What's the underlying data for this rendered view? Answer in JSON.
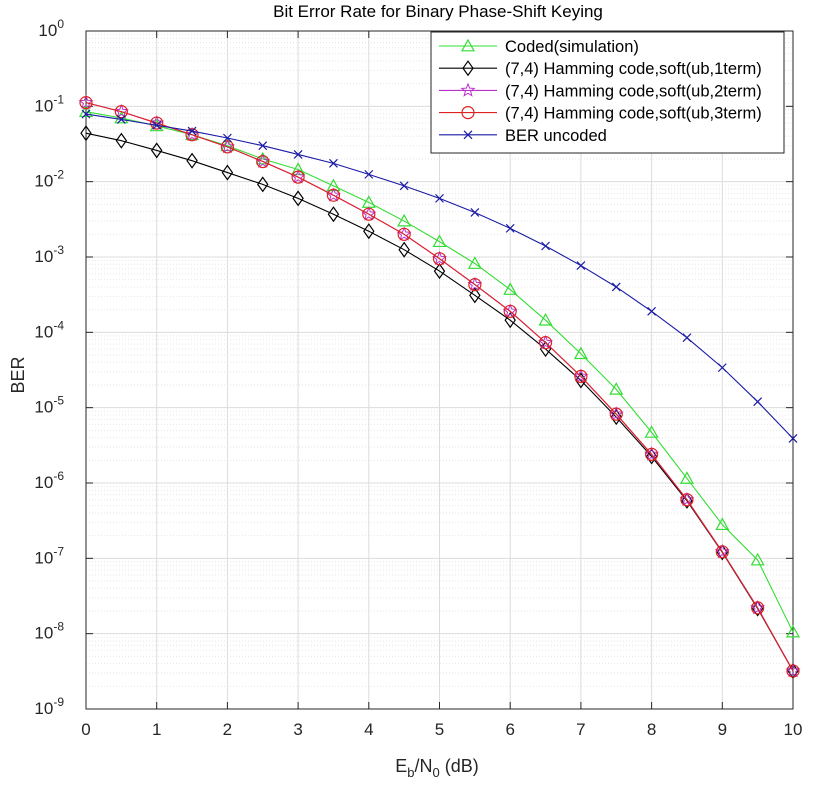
{
  "chart_data": {
    "type": "line",
    "title": "Bit Error Rate for Binary Phase-Shift Keying",
    "xlabel": {
      "E": "E",
      "sub1": "b",
      "slash": "/N",
      "sub2": "0",
      "unit": " (dB)"
    },
    "ylabel": "BER",
    "xlim": [
      0,
      10
    ],
    "ylim": [
      1e-09,
      1
    ],
    "yscale": "log",
    "grid": true,
    "legend_position": "top-right",
    "x_ticks": [
      "0",
      "1",
      "2",
      "3",
      "4",
      "5",
      "6",
      "7",
      "8",
      "9",
      "10"
    ],
    "y_ticks": [
      {
        "base": "10",
        "exp": "0"
      },
      {
        "base": "10",
        "exp": "-1"
      },
      {
        "base": "10",
        "exp": "-2"
      },
      {
        "base": "10",
        "exp": "-3"
      },
      {
        "base": "10",
        "exp": "-4"
      },
      {
        "base": "10",
        "exp": "-5"
      },
      {
        "base": "10",
        "exp": "-6"
      },
      {
        "base": "10",
        "exp": "-7"
      },
      {
        "base": "10",
        "exp": "-8"
      },
      {
        "base": "10",
        "exp": "-9"
      }
    ],
    "x": [
      0,
      0.5,
      1,
      1.5,
      2,
      2.5,
      3,
      3.5,
      4,
      4.5,
      5,
      5.5,
      6,
      6.5,
      7,
      7.5,
      8,
      8.5,
      9,
      9.5,
      10
    ],
    "series": [
      {
        "name": "Coded(simulation)",
        "color": "#33dd33",
        "marker": "triangle",
        "values": [
          0.085,
          0.07,
          0.055,
          0.042,
          0.03,
          0.02,
          0.0145,
          0.0088,
          0.0053,
          0.003,
          0.0016,
          0.00082,
          0.00037,
          0.000145,
          5.2e-05,
          1.75e-05,
          4.7e-06,
          1.15e-06,
          2.8e-07,
          9.5e-08,
          1.05e-08
        ]
      },
      {
        "name": "(7,4) Hamming code,soft(ub,1term)",
        "color": "#000000",
        "marker": "diamond",
        "values": [
          0.044,
          0.035,
          0.026,
          0.019,
          0.0132,
          0.0092,
          0.006,
          0.0037,
          0.0022,
          0.00125,
          0.00065,
          0.00031,
          0.000145,
          6e-05,
          2.3e-05,
          7.5e-06,
          2.25e-06,
          5.8e-07,
          1.2e-07,
          2.15e-08,
          3.2e-09
        ]
      },
      {
        "name": "(7,4) Hamming code,soft(ub,2term)",
        "color": "#bb33cc",
        "marker": "star",
        "values": [
          0.112,
          0.085,
          0.06,
          0.042,
          0.029,
          0.0185,
          0.0115,
          0.0066,
          0.0037,
          0.002,
          0.00095,
          0.00043,
          0.00019,
          7.3e-05,
          2.6e-05,
          8.2e-06,
          2.4e-06,
          6e-07,
          1.22e-07,
          2.2e-08,
          3.2e-09
        ]
      },
      {
        "name": "(7,4) Hamming code,soft(ub,3term)",
        "color": "#dd2222",
        "marker": "circle",
        "values": [
          0.112,
          0.085,
          0.06,
          0.042,
          0.029,
          0.0185,
          0.0115,
          0.0066,
          0.0037,
          0.002,
          0.00095,
          0.00043,
          0.00019,
          7.3e-05,
          2.6e-05,
          8.2e-06,
          2.4e-06,
          6e-07,
          1.22e-07,
          2.2e-08,
          3.2e-09
        ]
      },
      {
        "name": "BER uncoded",
        "color": "#1a1aa6",
        "marker": "x",
        "values": [
          0.079,
          0.067,
          0.056,
          0.047,
          0.038,
          0.03,
          0.023,
          0.0175,
          0.0125,
          0.0088,
          0.006,
          0.0039,
          0.0024,
          0.0014,
          0.00077,
          0.0004,
          0.00019,
          8.5e-05,
          3.4e-05,
          1.2e-05,
          3.9e-06
        ]
      }
    ]
  }
}
